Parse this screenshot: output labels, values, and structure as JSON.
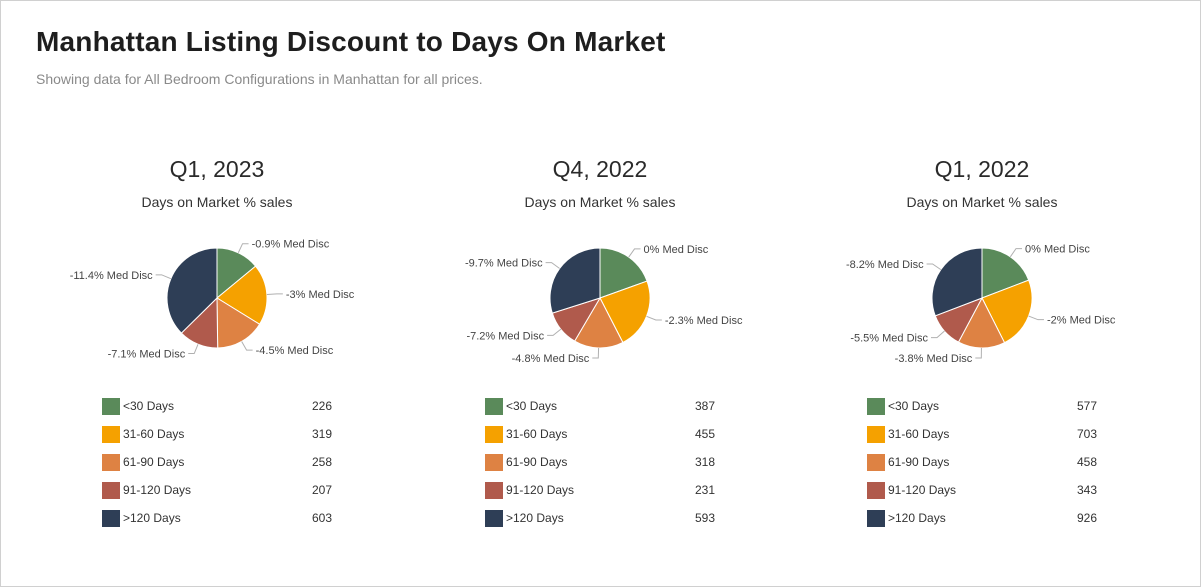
{
  "header": {
    "title": "Manhattan Listing Discount to Days On Market",
    "subtitle": "Showing data for All Bedroom Configurations in Manhattan for all prices."
  },
  "colors": {
    "lt30": "#5a8a5a",
    "d31_60": "#f5a100",
    "d61_90": "#de8243",
    "d91_120": "#b05a4c",
    "gt120": "#2e3e56"
  },
  "chart_data": [
    {
      "type": "pie",
      "title": "Q1, 2023",
      "subtitle": "Days on Market % sales",
      "categories": [
        "<30 Days",
        "31-60 Days",
        "61-90 Days",
        "91-120 Days",
        ">120 Days"
      ],
      "values": [
        226,
        319,
        258,
        207,
        603
      ],
      "slice_labels": [
        "-0.9% Med Disc",
        "-3% Med Disc",
        "-4.5% Med Disc",
        "-7.1% Med Disc",
        "-11.4% Med Disc"
      ]
    },
    {
      "type": "pie",
      "title": "Q4, 2022",
      "subtitle": "Days on Market % sales",
      "categories": [
        "<30 Days",
        "31-60 Days",
        "61-90 Days",
        "91-120 Days",
        ">120 Days"
      ],
      "values": [
        387,
        455,
        318,
        231,
        593
      ],
      "slice_labels": [
        "0% Med Disc",
        "-2.3% Med Disc",
        "-4.8% Med Disc",
        "-7.2% Med Disc",
        "-9.7% Med Disc"
      ]
    },
    {
      "type": "pie",
      "title": "Q1, 2022",
      "subtitle": "Days on Market % sales",
      "categories": [
        "<30 Days",
        "31-60 Days",
        "61-90 Days",
        "91-120 Days",
        ">120 Days"
      ],
      "values": [
        577,
        703,
        458,
        343,
        926
      ],
      "slice_labels": [
        "0% Med Disc",
        "-2% Med Disc",
        "-3.8% Med Disc",
        "-5.5% Med Disc",
        "-8.2% Med Disc"
      ]
    }
  ]
}
